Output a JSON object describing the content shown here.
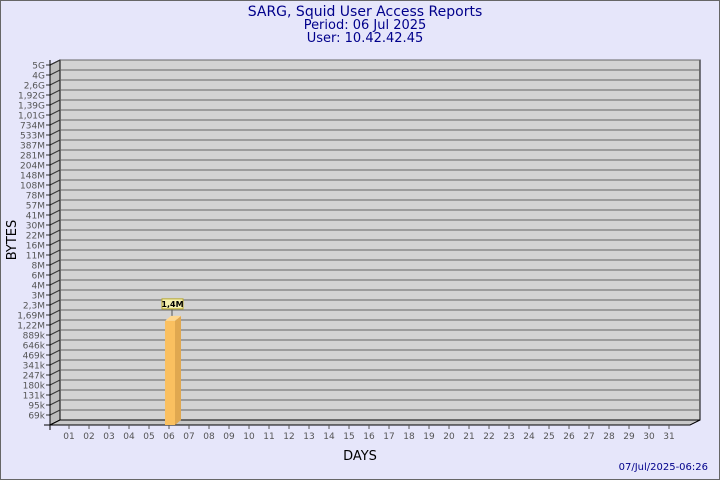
{
  "chart_data": {
    "type": "bar",
    "title": [
      "SARG, Squid User Access Reports",
      "Period: 06 Jul 2025",
      "User: 10.42.42.45"
    ],
    "xlabel": "DAYS",
    "ylabel": "BYTES",
    "y_scale": "log",
    "yticks": [
      "5G",
      "4G",
      "2,6G",
      "1,92G",
      "1,39G",
      "1,01G",
      "734M",
      "533M",
      "387M",
      "281M",
      "204M",
      "148M",
      "108M",
      "78M",
      "57M",
      "41M",
      "30M",
      "22M",
      "16M",
      "11M",
      "8M",
      "6M",
      "4M",
      "3M",
      "2,3M",
      "1,69M",
      "1,22M",
      "889k",
      "646k",
      "469k",
      "341k",
      "247k",
      "180k",
      "131k",
      "95k",
      "69k"
    ],
    "categories": [
      "01",
      "02",
      "03",
      "04",
      "05",
      "06",
      "07",
      "08",
      "09",
      "10",
      "11",
      "12",
      "13",
      "14",
      "15",
      "16",
      "17",
      "18",
      "19",
      "20",
      "21",
      "22",
      "23",
      "24",
      "25",
      "26",
      "27",
      "28",
      "29",
      "30",
      "31"
    ],
    "values": [
      null,
      null,
      null,
      null,
      null,
      1400000,
      null,
      null,
      null,
      null,
      null,
      null,
      null,
      null,
      null,
      null,
      null,
      null,
      null,
      null,
      null,
      null,
      null,
      null,
      null,
      null,
      null,
      null,
      null,
      null,
      null
    ],
    "data_labels": {
      "06": "1,4M"
    },
    "grid": true,
    "colors": {
      "bar": "#fac060",
      "bar_side": "#e0a850",
      "title": "#00008b",
      "wall": "#d3d3d3"
    }
  },
  "footer": {
    "timestamp": "07/Jul/2025-06:26"
  }
}
